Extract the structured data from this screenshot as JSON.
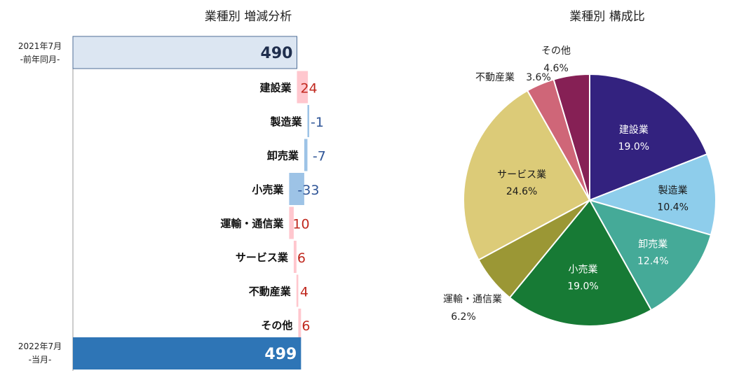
{
  "chart_data": [
    {
      "type": "bar",
      "subtype": "waterfall",
      "title": "業種別 増減分析",
      "start": {
        "label_line1": "2021年7月",
        "label_line2": "-前年同月-",
        "value": 490
      },
      "end": {
        "label_line1": "2022年7月",
        "label_line2": "-当月-",
        "value": 499
      },
      "categories": [
        "建設業",
        "製造業",
        "卸売業",
        "小売業",
        "運輸・通信業",
        "サービス業",
        "不動産業",
        "その他"
      ],
      "values": [
        24,
        -1,
        -7,
        -33,
        10,
        6,
        4,
        6
      ],
      "value_labels": [
        "24",
        "-1",
        "-7",
        "-33",
        "10",
        "6",
        "4",
        "6"
      ],
      "colors": {
        "start_fill": "#DCE6F2",
        "start_stroke": "#4F6E96",
        "end_fill": "#2E75B6",
        "increase_fill": "#FFC7CE",
        "increase_text": "#C0281E",
        "decrease_fill": "#9DC3E6",
        "decrease_text": "#2F5597"
      }
    },
    {
      "type": "pie",
      "title": "業種別 構成比",
      "categories": [
        "建設業",
        "製造業",
        "卸売業",
        "小売業",
        "運輸・通信業",
        "サービス業",
        "不動産業",
        "その他"
      ],
      "values": [
        19.0,
        10.4,
        12.4,
        19.0,
        6.2,
        24.6,
        3.6,
        4.6
      ],
      "value_labels": [
        "19.0%",
        "10.4%",
        "12.4%",
        "19.0%",
        "6.2%",
        "24.6%",
        "3.6%",
        "4.6%"
      ],
      "colors": [
        "#33227F",
        "#8ECDEB",
        "#45AA98",
        "#177A35",
        "#9B9735",
        "#DCCB78",
        "#CF6678",
        "#862055"
      ]
    }
  ]
}
